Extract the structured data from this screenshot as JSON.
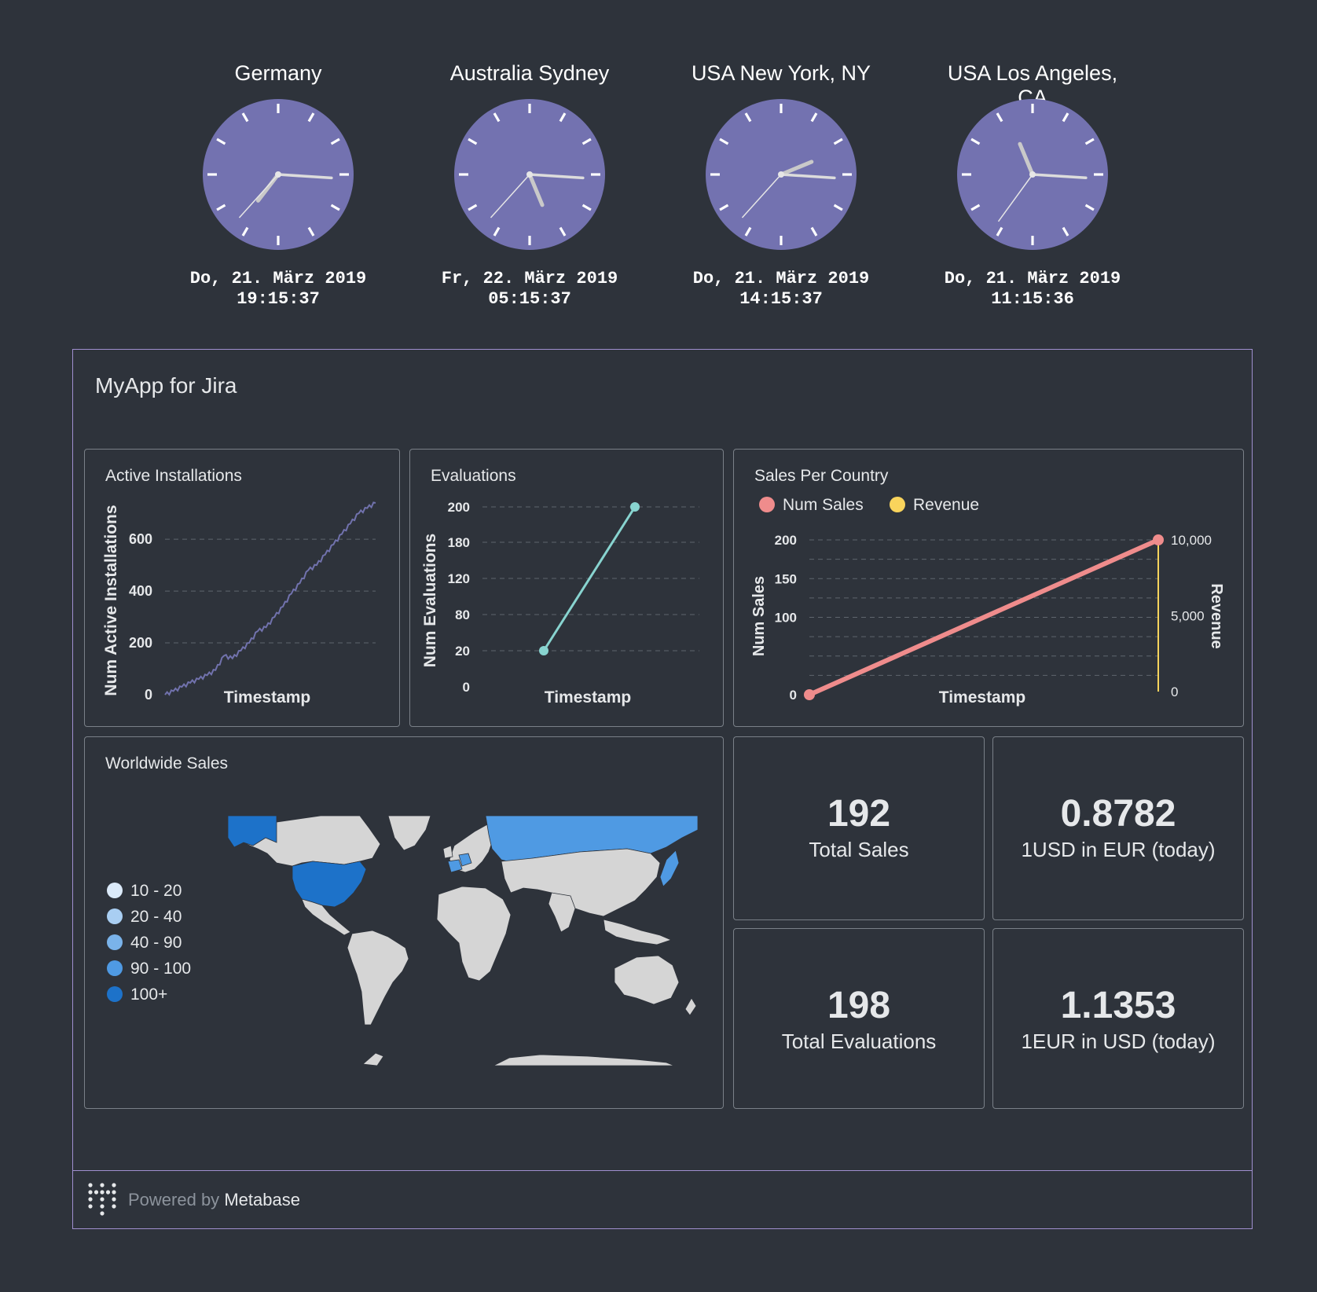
{
  "clocks": [
    {
      "city": "Germany",
      "date": "Do, 21. März 2019",
      "time": "19:15:37"
    },
    {
      "city": "Australia Sydney",
      "date": "Fr, 22. März 2019",
      "time": "05:15:37"
    },
    {
      "city": "USA New York, NY",
      "date": "Do, 21. März 2019",
      "time": "14:15:37"
    },
    {
      "city": "USA Los Angeles, CA",
      "date": "Do, 21. März 2019",
      "time": "11:15:36"
    }
  ],
  "colors": {
    "background": "#2e333b",
    "clock_face": "#7372b0",
    "dashboard_border": "#a08fcf",
    "card_border": "#7a8088",
    "active_installations": "#7172ad",
    "evaluations": "#88d4d0",
    "num_sales": "#ef8c8c",
    "revenue": "#f9d45c",
    "map_land": "#d5d5d5"
  },
  "dashboard": {
    "title": "MyApp for Jira",
    "footer": {
      "powered_by": "Powered by",
      "brand": "Metabase"
    }
  },
  "chart_data": [
    {
      "type": "line",
      "title": "Active Installations",
      "xlabel": "Timestamp",
      "ylabel": "Num Active Installations",
      "yticks": [
        "0",
        "200",
        "400",
        "600"
      ],
      "ylim": [
        0,
        740
      ],
      "grid": true,
      "series": [
        {
          "values": [
            0,
            14,
            30,
            46,
            60,
            75,
            95,
            150,
            140,
            170,
            200,
            245,
            260,
            300,
            340,
            390,
            430,
            480,
            500,
            540,
            580,
            620,
            660,
            700,
            720,
            740
          ]
        }
      ]
    },
    {
      "type": "line",
      "title": "Evaluations",
      "xlabel": "Timestamp",
      "ylabel": "Num Evaluations",
      "yticks": [
        "0",
        "20",
        "80",
        "120",
        "180",
        "200"
      ],
      "x": [
        0,
        1
      ],
      "grid": true,
      "series": [
        {
          "values": [
            20,
            200
          ]
        }
      ]
    },
    {
      "type": "line",
      "title": "Sales Per Country",
      "xlabel": "Timestamp",
      "ylabel": "Num Sales",
      "ylabel_right": "Revenue",
      "yticks": [
        "0",
        "100",
        "150",
        "200"
      ],
      "yticks_right": [
        "0",
        "5,000",
        "10,000"
      ],
      "ylim": [
        0,
        200
      ],
      "ylim_right": [
        0,
        10000
      ],
      "legend": "top-left",
      "series": [
        {
          "name": "Num Sales",
          "values": [
            0,
            200
          ]
        },
        {
          "name": "Revenue",
          "values": [
            0,
            10000
          ]
        }
      ]
    }
  ],
  "worldwide_sales": {
    "title": "Worldwide Sales",
    "legend": [
      {
        "label": "10 - 20",
        "color": "#dbeaf9"
      },
      {
        "label": "20 - 40",
        "color": "#a9cef2"
      },
      {
        "label": "40 - 90",
        "color": "#7ab3ea"
      },
      {
        "label": "90 - 100",
        "color": "#4f9ae3"
      },
      {
        "label": "100+",
        "color": "#1d72c9"
      }
    ]
  },
  "scalars": [
    {
      "value": "192",
      "label": "Total Sales"
    },
    {
      "value": "0.8782",
      "label": "1USD in EUR (today)"
    },
    {
      "value": "198",
      "label": "Total Evaluations"
    },
    {
      "value": "1.1353",
      "label": "1EUR in USD (today)"
    }
  ]
}
